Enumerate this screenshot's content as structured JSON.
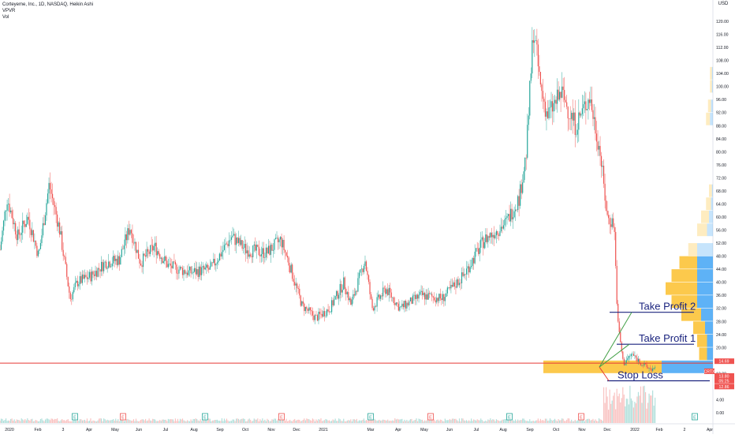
{
  "header": {
    "symbol_line": "Corteyeme, Inc., 1D, NASDAQ, Heikin Ashi",
    "indicator_1": "VPVR",
    "indicator_2": "Vol"
  },
  "currency": "USD",
  "colors": {
    "up": "#26a69a",
    "down": "#ef5350",
    "vp_yellow": "#fbc02d",
    "vp_blue": "#42a5f5",
    "annotation_blue": "#1a237e",
    "stop_red": "#e53935",
    "arrow_green": "#43a047"
  },
  "chart_data": {
    "type": "candlestick",
    "title": "Corteyeme, Inc., 1D, NASDAQ, Heikin Ashi",
    "ylabel": "USD",
    "ylim": [
      -4,
      124
    ],
    "y_ticks": [
      "120.00",
      "116.00",
      "112.00",
      "108.00",
      "104.00",
      "100.00",
      "96.00",
      "92.00",
      "88.00",
      "84.00",
      "80.00",
      "76.00",
      "72.00",
      "68.00",
      "64.00",
      "60.00",
      "56.00",
      "52.00",
      "48.00",
      "44.00",
      "40.00",
      "36.00",
      "32.00",
      "28.00",
      "24.00",
      "20.00",
      "16.00",
      "12.00",
      "8.00",
      "4.00",
      "0.00"
    ],
    "x_ticks": [
      "2020",
      "Feb",
      "3",
      "Apr",
      "May",
      "Jun",
      "Jul",
      "Aug",
      "Sep",
      "Oct",
      "Nov",
      "Dec",
      "2021",
      "Mar",
      "Apr",
      "May",
      "Jun",
      "Jul",
      "Aug",
      "Sep",
      "Oct",
      "Nov",
      "Dec",
      "2022",
      "Feb",
      "2",
      "Apr"
    ],
    "price_path": [
      {
        "t": 0,
        "v": 50
      },
      {
        "t": 0.01,
        "v": 66
      },
      {
        "t": 0.025,
        "v": 54
      },
      {
        "t": 0.04,
        "v": 60
      },
      {
        "t": 0.055,
        "v": 48
      },
      {
        "t": 0.07,
        "v": 70
      },
      {
        "t": 0.085,
        "v": 56
      },
      {
        "t": 0.1,
        "v": 35
      },
      {
        "t": 0.11,
        "v": 40
      },
      {
        "t": 0.13,
        "v": 42
      },
      {
        "t": 0.15,
        "v": 46
      },
      {
        "t": 0.17,
        "v": 47
      },
      {
        "t": 0.185,
        "v": 57
      },
      {
        "t": 0.2,
        "v": 46
      },
      {
        "t": 0.22,
        "v": 51
      },
      {
        "t": 0.24,
        "v": 45
      },
      {
        "t": 0.27,
        "v": 43
      },
      {
        "t": 0.3,
        "v": 44
      },
      {
        "t": 0.33,
        "v": 54
      },
      {
        "t": 0.35,
        "v": 50
      },
      {
        "t": 0.38,
        "v": 49
      },
      {
        "t": 0.4,
        "v": 53
      },
      {
        "t": 0.41,
        "v": 47
      },
      {
        "t": 0.43,
        "v": 33
      },
      {
        "t": 0.45,
        "v": 29
      },
      {
        "t": 0.47,
        "v": 32
      },
      {
        "t": 0.49,
        "v": 40
      },
      {
        "t": 0.5,
        "v": 33
      },
      {
        "t": 0.52,
        "v": 47
      },
      {
        "t": 0.53,
        "v": 32
      },
      {
        "t": 0.55,
        "v": 38
      },
      {
        "t": 0.57,
        "v": 32
      },
      {
        "t": 0.6,
        "v": 36
      },
      {
        "t": 0.63,
        "v": 35
      },
      {
        "t": 0.66,
        "v": 42
      },
      {
        "t": 0.69,
        "v": 53
      },
      {
        "t": 0.72,
        "v": 58
      },
      {
        "t": 0.74,
        "v": 66
      },
      {
        "t": 0.75,
        "v": 80
      },
      {
        "t": 0.76,
        "v": 118
      },
      {
        "t": 0.77,
        "v": 100
      },
      {
        "t": 0.78,
        "v": 91
      },
      {
        "t": 0.8,
        "v": 98
      },
      {
        "t": 0.82,
        "v": 88
      },
      {
        "t": 0.84,
        "v": 97
      },
      {
        "t": 0.855,
        "v": 80
      },
      {
        "t": 0.865,
        "v": 60
      },
      {
        "t": 0.875,
        "v": 58
      },
      {
        "t": 0.88,
        "v": 28
      },
      {
        "t": 0.888,
        "v": 15
      },
      {
        "t": 0.9,
        "v": 18
      },
      {
        "t": 0.92,
        "v": 14
      },
      {
        "t": 0.935,
        "v": 13
      }
    ],
    "earnings_markers": [
      "E",
      "E",
      "E",
      "E",
      "E",
      "E",
      "E",
      "E",
      "E"
    ],
    "volume_profile": [
      {
        "price": 50,
        "yellow": 9,
        "blue": 16
      },
      {
        "price": 46,
        "yellow": 18,
        "blue": 16
      },
      {
        "price": 42,
        "yellow": 26,
        "blue": 16
      },
      {
        "price": 38,
        "yellow": 32,
        "blue": 16
      },
      {
        "price": 34,
        "yellow": 26,
        "blue": 16
      },
      {
        "price": 30,
        "yellow": 20,
        "blue": 12
      },
      {
        "price": 26,
        "yellow": 12,
        "blue": 8
      },
      {
        "price": 22,
        "yellow": 10,
        "blue": 6
      },
      {
        "price": 18,
        "yellow": 8,
        "blue": 6
      },
      {
        "price": 14,
        "yellow": 120,
        "blue": 52
      },
      {
        "price": 60,
        "yellow": 8,
        "blue": 4
      },
      {
        "price": 56,
        "yellow": 10,
        "blue": 6
      },
      {
        "price": 64,
        "yellow": 5,
        "blue": 2
      },
      {
        "price": 68,
        "yellow": 3,
        "blue": 1
      },
      {
        "price": 90,
        "yellow": 4,
        "blue": 3
      },
      {
        "price": 94,
        "yellow": 3,
        "blue": 2
      },
      {
        "price": 100,
        "yellow": 2,
        "blue": 1
      },
      {
        "price": 104,
        "yellow": 2,
        "blue": 1
      }
    ],
    "annotations": [
      {
        "label": "Take Profit 2",
        "price": 30.8
      },
      {
        "label": "Take Profit 1",
        "price": 21
      },
      {
        "label": "Stop Loss",
        "price": 9.8
      }
    ],
    "horizontal_line": {
      "price": 15.2
    },
    "price_labels": [
      {
        "text": "14.69",
        "color": "#ef5350"
      },
      {
        "text": "CRTX",
        "color": "#ef5350"
      },
      {
        "text": "13.80",
        "color": "#ef5350"
      },
      {
        "text": "05:25",
        "color": "#ef5350"
      },
      {
        "text": "12.86",
        "color": "#ef5350"
      }
    ]
  }
}
